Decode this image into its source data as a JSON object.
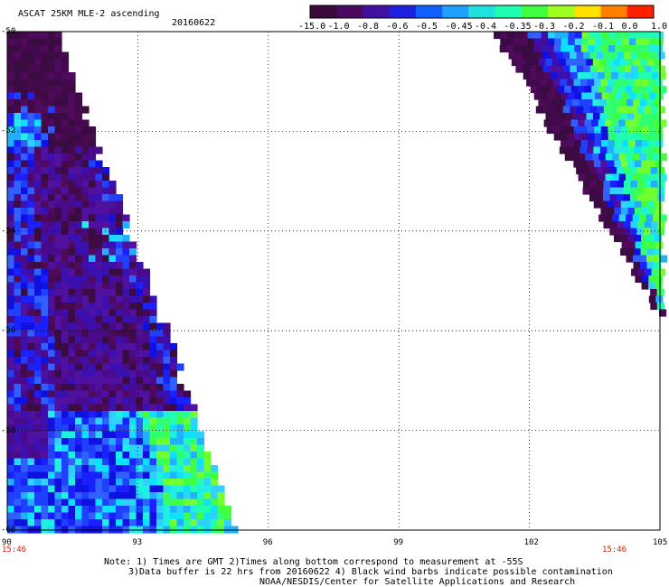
{
  "header": {
    "title": "ASCAT 25KM MLE-2 ascending",
    "date": "20160622"
  },
  "colorbar": {
    "labels": [
      "-15.0",
      "-1.0",
      "-0.8",
      "-0.6",
      "-0.5",
      "-0.45",
      "-0.4",
      "-0.35",
      "-0.3",
      "-0.2",
      "-0.1",
      "0.0",
      "1.0"
    ],
    "colors": [
      "#3a0a3a",
      "#4a0a60",
      "#4010a0",
      "#2020e0",
      "#1060ff",
      "#20a0ff",
      "#20e0e0",
      "#20ffb0",
      "#40ff40",
      "#a0ff20",
      "#ffe000",
      "#ff8000",
      "#ff2000"
    ]
  },
  "map": {
    "lon_range": [
      90,
      105
    ],
    "lat_range": [
      -50,
      -60
    ],
    "x_ticks": [
      "90",
      "93",
      "96",
      "99",
      "102",
      "105"
    ],
    "y_ticks": [
      "-50",
      "-52",
      "-54",
      "-56",
      "-58",
      "-60"
    ],
    "grid": "dotted"
  },
  "times": {
    "left": "15:46",
    "right": "15:46"
  },
  "footer": {
    "line1": "Note: 1) Times are GMT 2)Times along bottom correspond to measurement at -55S",
    "line2": "3)Data buffer is 22 hrs from 20160622 4) Black wind barbs indicate possible contamination",
    "line3": "NOAA/NESDIS/Center for Satellite Applications and Research"
  }
}
